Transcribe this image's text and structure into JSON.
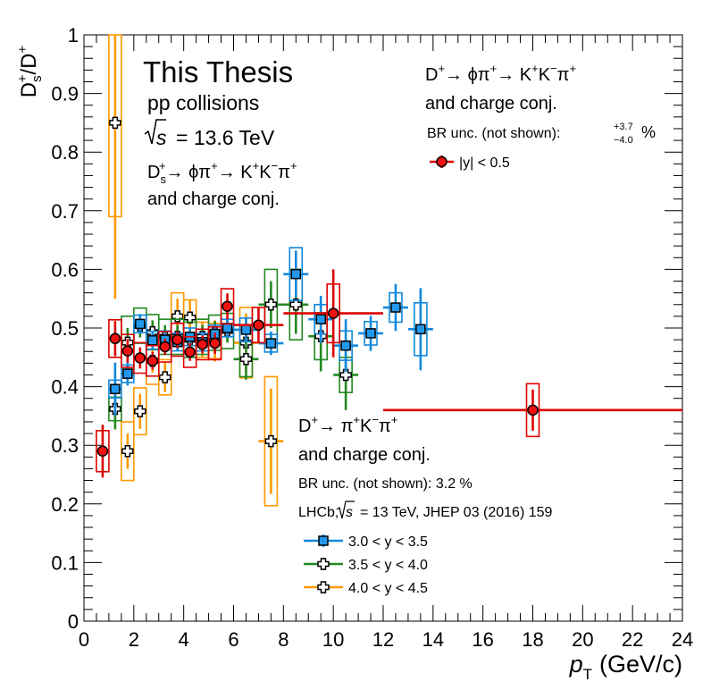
{
  "chart_data": {
    "type": "scatter",
    "xlabel": "p",
    "xlabel_sub": "T",
    "xlabel_unit": "(GeV/c)",
    "ylabel_num": "D",
    "ylabel_num_sub": "s",
    "ylabel_num_sup": "+",
    "ylabel_sep": "/",
    "ylabel_den": "D",
    "ylabel_den_sup": "+",
    "xlim": [
      0,
      24
    ],
    "ylim": [
      0,
      1
    ],
    "x_ticks": [
      0,
      2,
      4,
      6,
      8,
      10,
      12,
      14,
      16,
      18,
      20,
      22,
      24
    ],
    "y_ticks": [
      0,
      0.1,
      0.2,
      0.3,
      0.4,
      0.5,
      0.6,
      0.7,
      0.8,
      0.9,
      1
    ],
    "y_tick_labels": [
      "0",
      "0.1",
      "0.2",
      "0.3",
      "0.4",
      "0.5",
      "0.6",
      "0.7",
      "0.8",
      "0.9",
      "1"
    ],
    "grid": false,
    "series": [
      {
        "key": "red",
        "name": "|y| < 0.5",
        "color": "#dd0000",
        "marker": "circle",
        "marker_fill": "#ee1111",
        "points": [
          {
            "x": 0.75,
            "xerr": 0.25,
            "y": 0.29,
            "stat": 0.045,
            "sys": 0.035
          },
          {
            "x": 1.25,
            "xerr": 0.25,
            "y": 0.482,
            "stat": 0.03,
            "sys": 0.032
          },
          {
            "x": 1.75,
            "xerr": 0.25,
            "y": 0.461,
            "stat": 0.02,
            "sys": 0.028
          },
          {
            "x": 2.25,
            "xerr": 0.25,
            "y": 0.449,
            "stat": 0.018,
            "sys": 0.026
          },
          {
            "x": 2.75,
            "xerr": 0.25,
            "y": 0.444,
            "stat": 0.015,
            "sys": 0.026
          },
          {
            "x": 3.25,
            "xerr": 0.25,
            "y": 0.468,
            "stat": 0.014,
            "sys": 0.026
          },
          {
            "x": 3.75,
            "xerr": 0.25,
            "y": 0.48,
            "stat": 0.014,
            "sys": 0.028
          },
          {
            "x": 4.25,
            "xerr": 0.25,
            "y": 0.459,
            "stat": 0.015,
            "sys": 0.026
          },
          {
            "x": 4.75,
            "xerr": 0.25,
            "y": 0.472,
            "stat": 0.015,
            "sys": 0.026
          },
          {
            "x": 5.25,
            "xerr": 0.25,
            "y": 0.474,
            "stat": 0.018,
            "sys": 0.028
          },
          {
            "x": 5.75,
            "xerr": 0.25,
            "y": 0.537,
            "stat": 0.022,
            "sys": 0.03
          },
          {
            "x": 7.0,
            "xerr": 1.0,
            "y": 0.505,
            "stat": 0.03,
            "sys": 0.03
          },
          {
            "x": 10.0,
            "xerr": 2.0,
            "y": 0.525,
            "stat": 0.075,
            "sys": 0.05
          },
          {
            "x": 18.0,
            "xerr": 6.0,
            "y": 0.36,
            "stat": 0.035,
            "sys": 0.045
          }
        ]
      },
      {
        "key": "blue",
        "name": "3.0 < y < 3.5",
        "color": "#1188dd",
        "marker": "square",
        "marker_fill": "#2299ee",
        "points": [
          {
            "x": 1.25,
            "xerr": 0.25,
            "y": 0.396,
            "stat": 0.045,
            "sys": 0.015
          },
          {
            "x": 1.75,
            "xerr": 0.25,
            "y": 0.422,
            "stat": 0.02,
            "sys": 0.015
          },
          {
            "x": 2.25,
            "xerr": 0.25,
            "y": 0.507,
            "stat": 0.015,
            "sys": 0.015
          },
          {
            "x": 2.75,
            "xerr": 0.25,
            "y": 0.479,
            "stat": 0.015,
            "sys": 0.015
          },
          {
            "x": 3.25,
            "xerr": 0.25,
            "y": 0.48,
            "stat": 0.015,
            "sys": 0.015
          },
          {
            "x": 3.75,
            "xerr": 0.25,
            "y": 0.476,
            "stat": 0.015,
            "sys": 0.015
          },
          {
            "x": 4.25,
            "xerr": 0.25,
            "y": 0.485,
            "stat": 0.015,
            "sys": 0.015
          },
          {
            "x": 4.75,
            "xerr": 0.25,
            "y": 0.476,
            "stat": 0.015,
            "sys": 0.015
          },
          {
            "x": 5.25,
            "xerr": 0.25,
            "y": 0.49,
            "stat": 0.015,
            "sys": 0.015
          },
          {
            "x": 5.75,
            "xerr": 0.25,
            "y": 0.5,
            "stat": 0.015,
            "sys": 0.015
          },
          {
            "x": 6.5,
            "xerr": 0.5,
            "y": 0.497,
            "stat": 0.02,
            "sys": 0.02
          },
          {
            "x": 7.5,
            "xerr": 0.5,
            "y": 0.474,
            "stat": 0.02,
            "sys": 0.015
          },
          {
            "x": 8.5,
            "xerr": 0.5,
            "y": 0.592,
            "stat": 0.04,
            "sys": 0.045
          },
          {
            "x": 9.5,
            "xerr": 0.5,
            "y": 0.515,
            "stat": 0.04,
            "sys": 0.025
          },
          {
            "x": 10.5,
            "xerr": 0.5,
            "y": 0.47,
            "stat": 0.045,
            "sys": 0.025
          },
          {
            "x": 11.5,
            "xerr": 0.5,
            "y": 0.491,
            "stat": 0.03,
            "sys": 0.02
          },
          {
            "x": 12.5,
            "xerr": 0.5,
            "y": 0.535,
            "stat": 0.04,
            "sys": 0.025
          },
          {
            "x": 13.5,
            "xerr": 0.5,
            "y": 0.498,
            "stat": 0.07,
            "sys": 0.045
          }
        ]
      },
      {
        "key": "green",
        "name": "3.5 < y < 4.0",
        "color": "#228822",
        "marker": "cross",
        "marker_fill": "#ffffff",
        "points": [
          {
            "x": 1.25,
            "xerr": 0.25,
            "y": 0.362,
            "stat": 0.035,
            "sys": 0.02
          },
          {
            "x": 1.75,
            "xerr": 0.25,
            "y": 0.475,
            "stat": 0.025,
            "sys": 0.045
          },
          {
            "x": 2.25,
            "xerr": 0.25,
            "y": 0.504,
            "stat": 0.02,
            "sys": 0.03
          },
          {
            "x": 2.75,
            "xerr": 0.25,
            "y": 0.493,
            "stat": 0.02,
            "sys": 0.03
          },
          {
            "x": 3.25,
            "xerr": 0.25,
            "y": 0.485,
            "stat": 0.02,
            "sys": 0.03
          },
          {
            "x": 3.75,
            "xerr": 0.25,
            "y": 0.485,
            "stat": 0.02,
            "sys": 0.03
          },
          {
            "x": 4.25,
            "xerr": 0.25,
            "y": 0.48,
            "stat": 0.02,
            "sys": 0.03
          },
          {
            "x": 4.75,
            "xerr": 0.25,
            "y": 0.485,
            "stat": 0.02,
            "sys": 0.03
          },
          {
            "x": 5.25,
            "xerr": 0.25,
            "y": 0.492,
            "stat": 0.02,
            "sys": 0.03
          },
          {
            "x": 5.75,
            "xerr": 0.25,
            "y": 0.495,
            "stat": 0.02,
            "sys": 0.03
          },
          {
            "x": 6.5,
            "xerr": 0.5,
            "y": 0.447,
            "stat": 0.035,
            "sys": 0.03
          },
          {
            "x": 7.5,
            "xerr": 0.5,
            "y": 0.54,
            "stat": 0.04,
            "sys": 0.06
          },
          {
            "x": 8.5,
            "xerr": 0.5,
            "y": 0.54,
            "stat": 0.05,
            "sys": 0.06
          },
          {
            "x": 9.5,
            "xerr": 0.5,
            "y": 0.486,
            "stat": 0.06,
            "sys": 0.04
          },
          {
            "x": 10.5,
            "xerr": 0.5,
            "y": 0.42,
            "stat": 0.06,
            "sys": 0.03
          }
        ]
      },
      {
        "key": "orange",
        "name": "4.0 < y < 4.5",
        "color": "#ff9900",
        "marker": "cross",
        "marker_fill": "#ffffff",
        "points": [
          {
            "x": 1.25,
            "xerr": 0.25,
            "y": 0.85,
            "stat": 0.3,
            "sys": 0.16
          },
          {
            "x": 1.75,
            "xerr": 0.25,
            "y": 0.29,
            "stat": 0.03,
            "sys": 0.05
          },
          {
            "x": 2.25,
            "xerr": 0.25,
            "y": 0.358,
            "stat": 0.03,
            "sys": 0.04
          },
          {
            "x": 2.75,
            "xerr": 0.25,
            "y": 0.444,
            "stat": 0.02,
            "sys": 0.04
          },
          {
            "x": 3.25,
            "xerr": 0.25,
            "y": 0.416,
            "stat": 0.025,
            "sys": 0.03
          },
          {
            "x": 3.75,
            "xerr": 0.25,
            "y": 0.52,
            "stat": 0.03,
            "sys": 0.04
          },
          {
            "x": 4.25,
            "xerr": 0.25,
            "y": 0.518,
            "stat": 0.03,
            "sys": 0.03
          },
          {
            "x": 4.75,
            "xerr": 0.25,
            "y": 0.48,
            "stat": 0.03,
            "sys": 0.03
          },
          {
            "x": 5.25,
            "xerr": 0.25,
            "y": 0.478,
            "stat": 0.035,
            "sys": 0.03
          },
          {
            "x": 6.5,
            "xerr": 0.5,
            "y": 0.475,
            "stat": 0.05,
            "sys": 0.06
          },
          {
            "x": 7.5,
            "xerr": 0.5,
            "y": 0.307,
            "stat": 0.09,
            "sys": 0.11
          }
        ]
      }
    ],
    "annotations": {
      "title": "This Thesis",
      "collision": "pp collisions",
      "energy_sym": "s",
      "energy_val": "= 13.6 TeV",
      "ds_decay": {
        "lead": "D",
        "lead_sub": "s",
        "lead_sup": "+",
        "p1": "→ ϕπ",
        "p1_sup": "+",
        "p2": "→ K",
        "p2_sup": "+",
        "p3": "K",
        "p3_sup": "−",
        "p4": "π",
        "p4_sup": "+"
      },
      "ds_conj": "and charge conj.",
      "dplus_phi_decay": {
        "lead": "D",
        "lead_sup": "+",
        "p1": "→ ϕπ",
        "p1_sup": "+",
        "p2": "→ K",
        "p2_sup": "+",
        "p3": "K",
        "p3_sup": "−",
        "p4": "π",
        "p4_sup": "+"
      },
      "dplus_phi_conj": "and charge conj.",
      "br_unc_label": "BR unc. (not shown):",
      "br_unc_up": "+3.7",
      "br_unc_down": "−4.0",
      "br_unc_pct": "%",
      "dplus_kpi_decay": {
        "lead": "D",
        "lead_sup": "+",
        "p1": "→ π",
        "p1_sup": "+",
        "p2": "K",
        "p2_sup": "−",
        "p3": "π",
        "p3_sup": "+"
      },
      "dplus_kpi_conj": "and charge conj.",
      "br_unc2": "BR unc. (not shown): 3.2  %",
      "lhcb_pre": "LHCb,",
      "lhcb_sym": "s",
      "lhcb_post": "= 13 TeV, JHEP 03 (2016) 159"
    }
  }
}
